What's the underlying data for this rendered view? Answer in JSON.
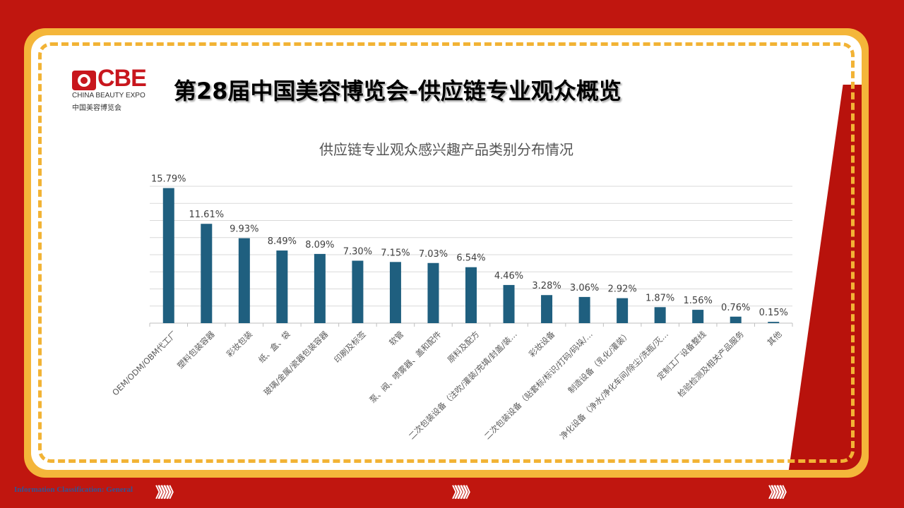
{
  "header": {
    "title": "第28届中国美容博览会-供应链专业观众概览",
    "logo_text": "CBE",
    "logo_sub": "CHINA BEAUTY EXPO",
    "logo_cn": "中国美容博览会"
  },
  "footer": {
    "classification": "Information Classification: General",
    "chevrons": "》》》》》"
  },
  "colors": {
    "bar": "#1f5f7f",
    "accent": "#f4b63a",
    "background": "#c0160f"
  },
  "chart_data": {
    "type": "bar",
    "title": "供应链专业观众感兴趣产品类别分布情况",
    "categories": [
      "OEM/ODM/OBM代工厂",
      "塑料包装容器",
      "彩妆包装",
      "纸、盒、袋",
      "玻璃/金属/瓷器包装容器",
      "印刷及标签",
      "软管",
      "泵、阀、喷雾器、盖和配件",
      "原料及配方",
      "二次包装设备（注吹/灌装/充填/封盖/装…",
      "彩妆设备",
      "二次包装设备（贴套标/标识/打码/码垛/…",
      "制造设备（乳化/灌装）",
      "净化设备（净水/净化车间/除尘/洗瓶/灭…",
      "定制工厂设备整线",
      "检验检测及相关产品服务",
      "其他"
    ],
    "values": [
      15.79,
      11.61,
      9.93,
      8.49,
      8.09,
      7.3,
      7.15,
      7.03,
      6.54,
      4.46,
      3.28,
      3.06,
      2.92,
      1.87,
      1.56,
      0.76,
      0.15
    ],
    "labels": [
      "15.79%",
      "11.61%",
      "9.93%",
      "8.49%",
      "8.09%",
      "7.30%",
      "7.15%",
      "7.03%",
      "6.54%",
      "4.46%",
      "3.28%",
      "3.06%",
      "2.92%",
      "1.87%",
      "1.56%",
      "0.76%",
      "0.15%"
    ],
    "ylim": [
      0,
      16
    ],
    "grid": true,
    "xlabel": "",
    "ylabel": ""
  }
}
